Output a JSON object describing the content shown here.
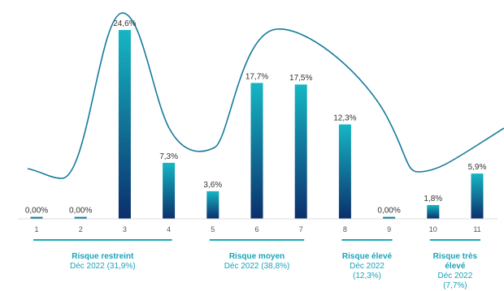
{
  "colors": {
    "bar_top": "#16b6c4",
    "bar_bottom": "#0b2f6b",
    "curve": "#157a9c",
    "group_line": "#18a9bd",
    "text": "#333333",
    "group_text": "#1aa3b8"
  },
  "chart_data": {
    "type": "bar",
    "categories": [
      "1",
      "2",
      "3",
      "4",
      "5",
      "6",
      "7",
      "8",
      "9",
      "10",
      "11"
    ],
    "values": [
      0.0,
      0.0,
      24.6,
      7.3,
      3.6,
      17.7,
      17.5,
      12.3,
      0.0,
      1.8,
      5.9
    ],
    "data_labels": [
      "0,00%",
      "0,00%",
      "24,6%",
      "7,3%",
      "3,6%",
      "17,7%",
      "17,5%",
      "12,3%",
      "0,00%",
      "1,8%",
      "5,9%"
    ],
    "ylim": [
      0,
      30
    ],
    "grid": false,
    "legend": "none",
    "title": "",
    "xlabel": "",
    "ylabel": "",
    "groups": [
      {
        "title": "Risque restreint",
        "subtitle": "Déc 2022 (31,9%)",
        "categories": [
          "1",
          "2",
          "3",
          "4"
        ]
      },
      {
        "title": "Risque moyen",
        "subtitle": "Déc 2022 (38,8%)",
        "categories": [
          "5",
          "6",
          "7"
        ]
      },
      {
        "title": "Risque élevé",
        "subtitle": "Déc 2022 (12,3%)",
        "categories": [
          "8",
          "9"
        ]
      },
      {
        "title": "Risque très élevé",
        "subtitle": "Déc 2022 (7,7%)",
        "categories": [
          "10",
          "11"
        ]
      }
    ]
  }
}
